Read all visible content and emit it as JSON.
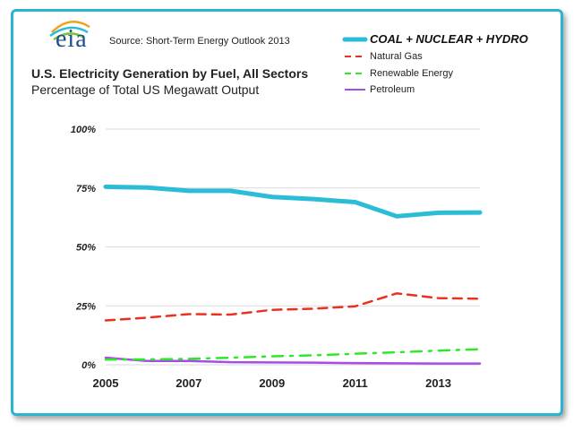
{
  "header": {
    "logo_text": "eia",
    "source": "Source: Short-Term Energy Outlook 2013",
    "title": "U.S. Electricity Generation by Fuel, All Sectors",
    "subtitle": "Percentage of Total US Megawatt Output"
  },
  "colors": {
    "frame": "#2ab3d3",
    "coal": "#2bbcd8",
    "gas": "#e8321e",
    "renewable": "#2ee82a",
    "petroleum": "#a64de6",
    "grid": "#d9d9d9",
    "logo": "#1b4f8a"
  },
  "chart_data": {
    "type": "line",
    "title": "U.S. Electricity Generation by Fuel, All Sectors",
    "subtitle": "Percentage of Total US Megawatt Output",
    "x": [
      2005,
      2006,
      2007,
      2008,
      2009,
      2010,
      2011,
      2012,
      2013,
      2014
    ],
    "x_tick_labels": [
      "2005",
      "2007",
      "2009",
      "2011",
      "2013"
    ],
    "ylim": [
      0,
      100
    ],
    "y_tick_labels": [
      "0%",
      "25%",
      "50%",
      "75%",
      "100%"
    ],
    "grid": true,
    "legend_position": "top-right",
    "series": [
      {
        "name": "COAL + NUCLEAR + HYDRO",
        "color": "#2bbcd8",
        "style": "solid-thick",
        "values": [
          75.5,
          75.2,
          73.8,
          73.8,
          71.2,
          70.3,
          69.0,
          63.0,
          64.5,
          64.6
        ]
      },
      {
        "name": "Natural Gas",
        "color": "#e8321e",
        "style": "dashed",
        "values": [
          18.8,
          20.0,
          21.5,
          21.3,
          23.3,
          23.8,
          24.8,
          30.3,
          28.3,
          28.0
        ]
      },
      {
        "name": "Renewable Energy",
        "color": "#2ee82a",
        "style": "dash-dot",
        "values": [
          2.2,
          2.3,
          2.5,
          3.0,
          3.6,
          4.0,
          4.7,
          5.3,
          6.0,
          6.6
        ]
      },
      {
        "name": "Petroleum",
        "color": "#a64de6",
        "style": "solid",
        "values": [
          3.0,
          1.6,
          1.6,
          1.1,
          1.0,
          0.9,
          0.7,
          0.6,
          0.5,
          0.5
        ]
      }
    ]
  }
}
